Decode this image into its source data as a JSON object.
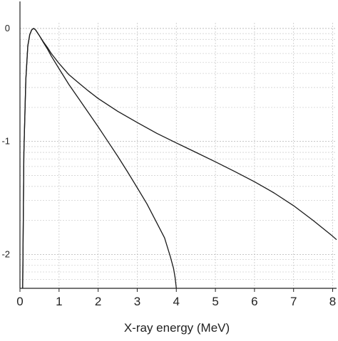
{
  "chart_data": {
    "type": "line",
    "title": "",
    "xlabel": "X-ray energy (MeV)",
    "ylabel": "",
    "xlim": [
      0,
      8.1
    ],
    "ylim_log10": [
      -2.3,
      0.05
    ],
    "y_scale": "log",
    "grid": true,
    "x_ticks": [
      "0",
      "1",
      "2",
      "3",
      "4",
      "5",
      "6",
      "7",
      "8"
    ],
    "y_ticks": [
      {
        "exp": 0,
        "label": "0"
      },
      {
        "exp": -1,
        "label": "-1"
      },
      {
        "exp": -2,
        "label": "-2"
      }
    ],
    "series": [
      {
        "color": "#1a1a1a",
        "x": [
          0.07,
          0.1,
          0.15,
          0.2,
          0.25,
          0.3,
          0.35,
          0.4,
          0.5,
          0.6,
          0.7,
          0.8,
          1.0,
          1.25,
          1.5,
          1.75,
          2.0,
          2.5,
          3.0,
          3.5,
          4.0,
          4.5,
          5.0,
          5.5,
          6.0,
          6.5,
          7.0,
          7.5,
          8.0,
          8.1
        ],
        "y": [
          0.005,
          0.08,
          0.35,
          0.7,
          0.88,
          0.97,
          1.0,
          0.97,
          0.86,
          0.76,
          0.68,
          0.6,
          0.49,
          0.39,
          0.33,
          0.28,
          0.24,
          0.185,
          0.147,
          0.118,
          0.097,
          0.08,
          0.066,
          0.054,
          0.044,
          0.035,
          0.027,
          0.02,
          0.0145,
          0.0135
        ]
      },
      {
        "color": "#1a1a1a",
        "x": [
          0.07,
          0.1,
          0.15,
          0.2,
          0.25,
          0.3,
          0.35,
          0.4,
          0.5,
          0.6,
          0.7,
          0.8,
          1.0,
          1.25,
          1.5,
          1.75,
          2.0,
          2.25,
          2.5,
          2.75,
          3.0,
          3.25,
          3.5,
          3.7,
          3.85,
          3.93,
          3.97,
          4.0
        ],
        "y": [
          0.005,
          0.08,
          0.35,
          0.7,
          0.88,
          0.97,
          1.0,
          0.97,
          0.86,
          0.75,
          0.66,
          0.57,
          0.44,
          0.32,
          0.24,
          0.18,
          0.135,
          0.1,
          0.074,
          0.054,
          0.039,
          0.028,
          0.019,
          0.014,
          0.0095,
          0.0075,
          0.0062,
          0.005
        ]
      }
    ]
  }
}
